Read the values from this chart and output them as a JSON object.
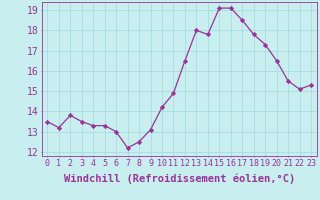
{
  "x": [
    0,
    1,
    2,
    3,
    4,
    5,
    6,
    7,
    8,
    9,
    10,
    11,
    12,
    13,
    14,
    15,
    16,
    17,
    18,
    19,
    20,
    21,
    22,
    23
  ],
  "y": [
    13.5,
    13.2,
    13.8,
    13.5,
    13.3,
    13.3,
    13.0,
    12.2,
    12.5,
    13.1,
    14.2,
    14.9,
    16.5,
    18.0,
    17.8,
    19.1,
    19.1,
    18.5,
    17.8,
    17.3,
    16.5,
    15.5,
    15.1,
    15.3
  ],
  "xlabel": "Windchill (Refroidissement éolien,°C)",
  "ylim": [
    11.8,
    19.4
  ],
  "xlim": [
    -0.5,
    23.5
  ],
  "yticks": [
    12,
    13,
    14,
    15,
    16,
    17,
    18,
    19
  ],
  "xticks": [
    0,
    1,
    2,
    3,
    4,
    5,
    6,
    7,
    8,
    9,
    10,
    11,
    12,
    13,
    14,
    15,
    16,
    17,
    18,
    19,
    20,
    21,
    22,
    23
  ],
  "line_color": "#993399",
  "marker": "D",
  "marker_size": 2.2,
  "bg_color": "#c8eef0",
  "grid_color": "#aadddd",
  "label_color": "#993399",
  "tick_color": "#993399",
  "xlabel_fontsize": 7.5,
  "ytick_fontsize": 7,
  "xtick_fontsize": 6
}
